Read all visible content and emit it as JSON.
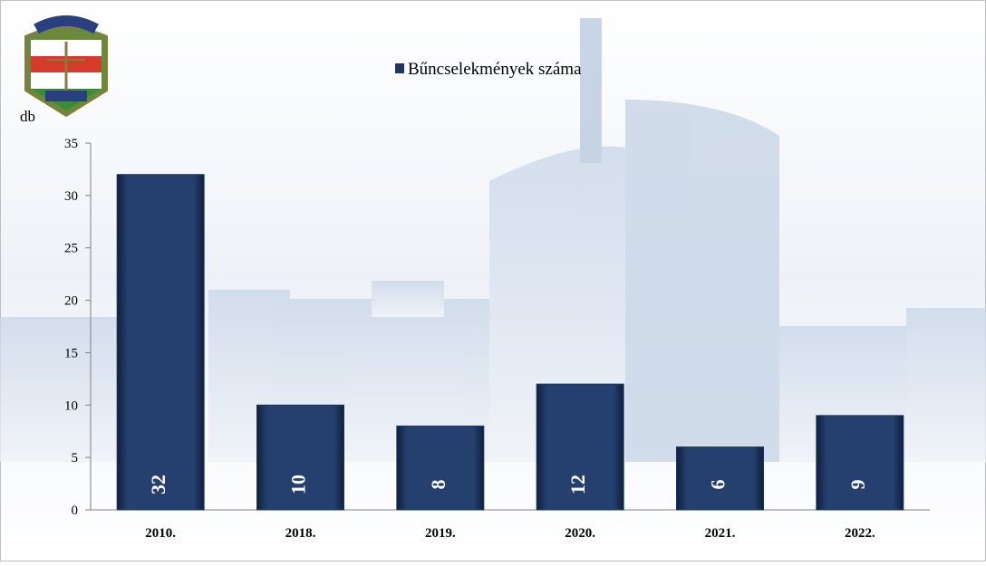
{
  "chart_data": {
    "type": "bar",
    "y_label": "db",
    "categories": [
      "2010.",
      "2018.",
      "2019.",
      "2020.",
      "2021.",
      "2022."
    ],
    "series": [
      {
        "name": "Bűncselekmények száma",
        "color": "#1f3560",
        "values": [
          32,
          10,
          8,
          12,
          6,
          9
        ]
      }
    ],
    "ylim": [
      0,
      35
    ],
    "yticks": [
      0,
      5,
      10,
      15,
      20,
      25,
      30,
      35
    ],
    "legend": "top"
  }
}
